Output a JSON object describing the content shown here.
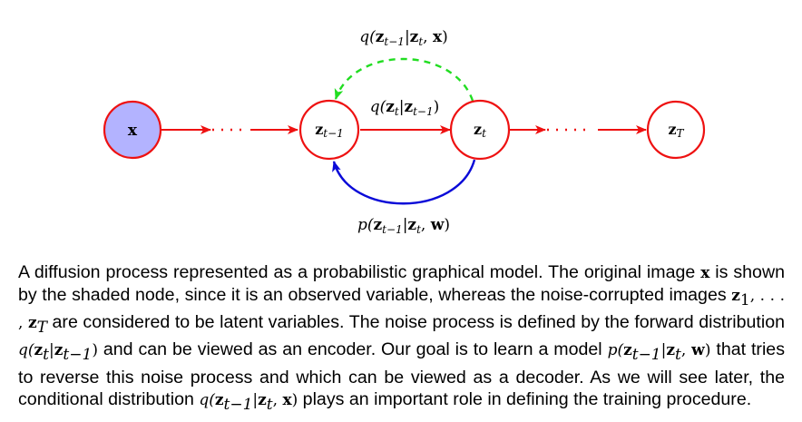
{
  "nodes": {
    "x": "x",
    "z_prev_base": "z",
    "z_prev_sub": "t−1",
    "z_t_base": "z",
    "z_t_sub": "t",
    "z_T_base": "z",
    "z_T_sub": "T"
  },
  "labels": {
    "reverse_q": {
      "pre": "q(",
      "z1": "z",
      "s1": "t−1",
      "mid": "|",
      "z2": "z",
      "s2": "t",
      "comma": ", ",
      "x": "x",
      "post": ")"
    },
    "forward_q": {
      "pre": "q(",
      "z1": "z",
      "s1": "t",
      "mid": "|",
      "z2": "z",
      "s2": "t−1",
      "post": ")"
    },
    "reverse_p": {
      "pre": "p(",
      "z1": "z",
      "s1": "t−1",
      "mid": "|",
      "z2": "z",
      "s2": "t",
      "comma": ", ",
      "w": "w",
      "post": ")"
    }
  },
  "colors": {
    "node_stroke": "#ee1111",
    "observed_fill": "#b3b3ff",
    "forward_edge": "#ee1111",
    "decoder_edge": "#0a0ad8",
    "conditional_edge": "#22dd22"
  },
  "caption": {
    "s1": "A diffusion process represented as a probabilistic graphical model. The original image ",
    "x1": "x",
    "s2": " is shown by the shaded node, since it is an observed variable, whereas the noise-corrupted images ",
    "m_z1": "z",
    "m_sub1": "1",
    "m_dots": ", . . . , ",
    "m_zT": "z",
    "m_subT": "T",
    "s3": " are considered to be latent variables. The noise process is defined by the forward distribution ",
    "q1_pre": "q(",
    "q1_z1": "z",
    "q1_s1": "t",
    "q1_bar": "|",
    "q1_z2": "z",
    "q1_s2": "t−1",
    "q1_post": ")",
    "s4": " and can be viewed as an encoder. Our goal is to learn a model ",
    "p_pre": "p(",
    "p_z1": "z",
    "p_s1": "t−1",
    "p_bar": "|",
    "p_z2": "z",
    "p_s2": "t",
    "p_comma": ", ",
    "p_w": "w",
    "p_post": ")",
    "s5": " that tries to reverse this noise process and which can be viewed as a decoder. As we will see later, the conditional distribution ",
    "q2_pre": "q(",
    "q2_z1": "z",
    "q2_s1": "t−1",
    "q2_bar": "|",
    "q2_z2": "z",
    "q2_s2": "t",
    "q2_comma": ", ",
    "q2_x": "x",
    "q2_post": ")",
    "s6": " plays an important role in defining the training procedure."
  }
}
